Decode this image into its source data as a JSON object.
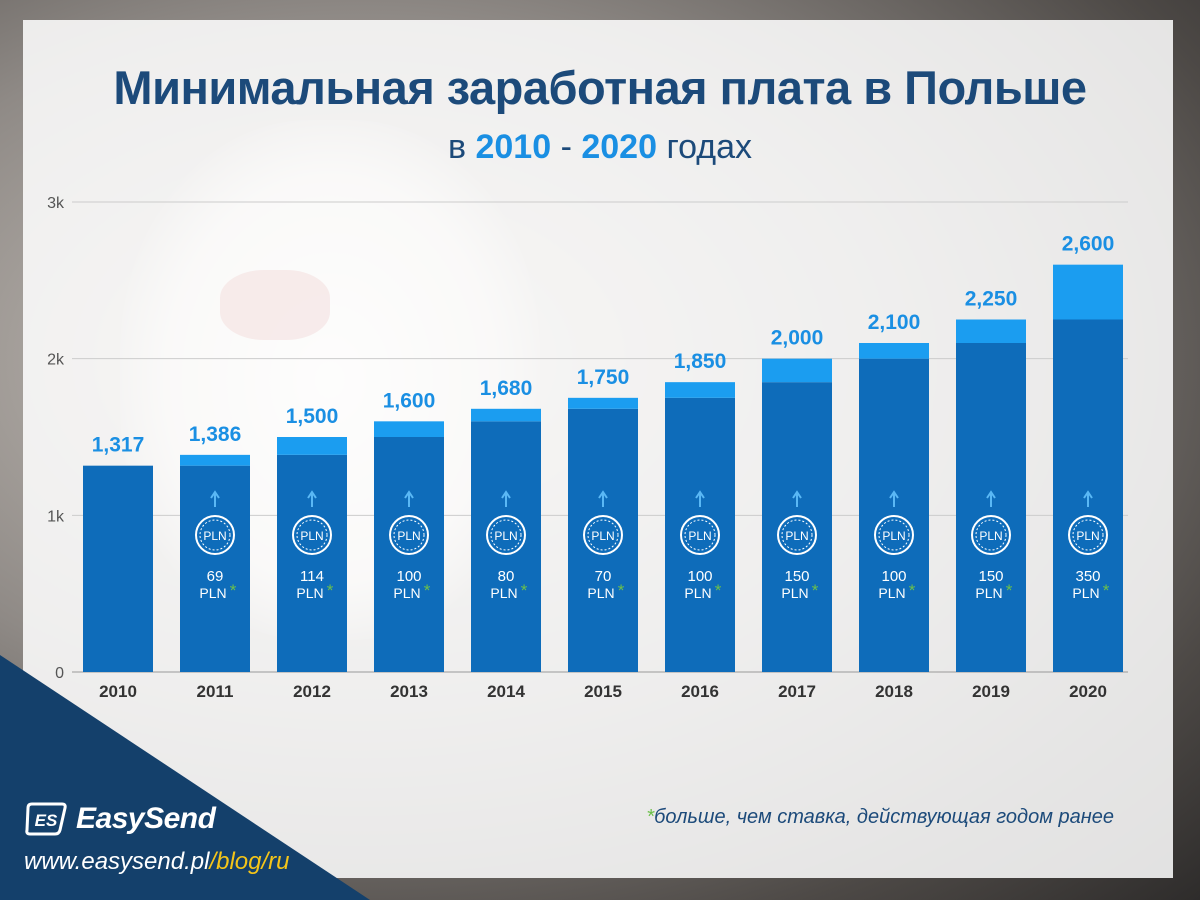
{
  "header": {
    "title": "Минимальная заработная плата в Польше",
    "subtitle_prefix": "в",
    "subtitle_year_from": "2010",
    "subtitle_dash": "-",
    "subtitle_year_to": "2020",
    "subtitle_suffix": "годах"
  },
  "chart_data": {
    "type": "bar",
    "stacked": true,
    "categories": [
      "2010",
      "2011",
      "2012",
      "2013",
      "2014",
      "2015",
      "2016",
      "2017",
      "2018",
      "2019",
      "2020"
    ],
    "values": [
      1317,
      1386,
      1500,
      1600,
      1680,
      1750,
      1850,
      2000,
      2100,
      2250,
      2600
    ],
    "value_labels": [
      "1,317",
      "1,386",
      "1,500",
      "1,600",
      "1,680",
      "1,750",
      "1,850",
      "2,000",
      "2,100",
      "2,250",
      "2,600"
    ],
    "increases": [
      null,
      69,
      114,
      100,
      80,
      70,
      100,
      150,
      100,
      150,
      350
    ],
    "increase_unit": "PLN",
    "increase_marker": "*",
    "coin_label": "PLN",
    "ylim": [
      0,
      3000
    ],
    "yticks": [
      0,
      1000,
      2000,
      3000
    ],
    "ytick_labels": [
      "0",
      "1k",
      "2k",
      "3k"
    ],
    "grid": true,
    "colors": {
      "base": "#0e6cba",
      "increase": "#1b9df0",
      "value_label": "#1a8fe3",
      "axis_text": "#555555",
      "grid": "#cccccc",
      "star": "#6cc04a"
    }
  },
  "footnote": {
    "star": "*",
    "text": "больше, чем ставка, действующая годом ранее"
  },
  "brand": {
    "logo_icon": "es-logo-icon",
    "name": "EasySend",
    "url_main": "www.easysend.pl",
    "url_path": "/blog/ru",
    "corner_color": "#14406b"
  }
}
